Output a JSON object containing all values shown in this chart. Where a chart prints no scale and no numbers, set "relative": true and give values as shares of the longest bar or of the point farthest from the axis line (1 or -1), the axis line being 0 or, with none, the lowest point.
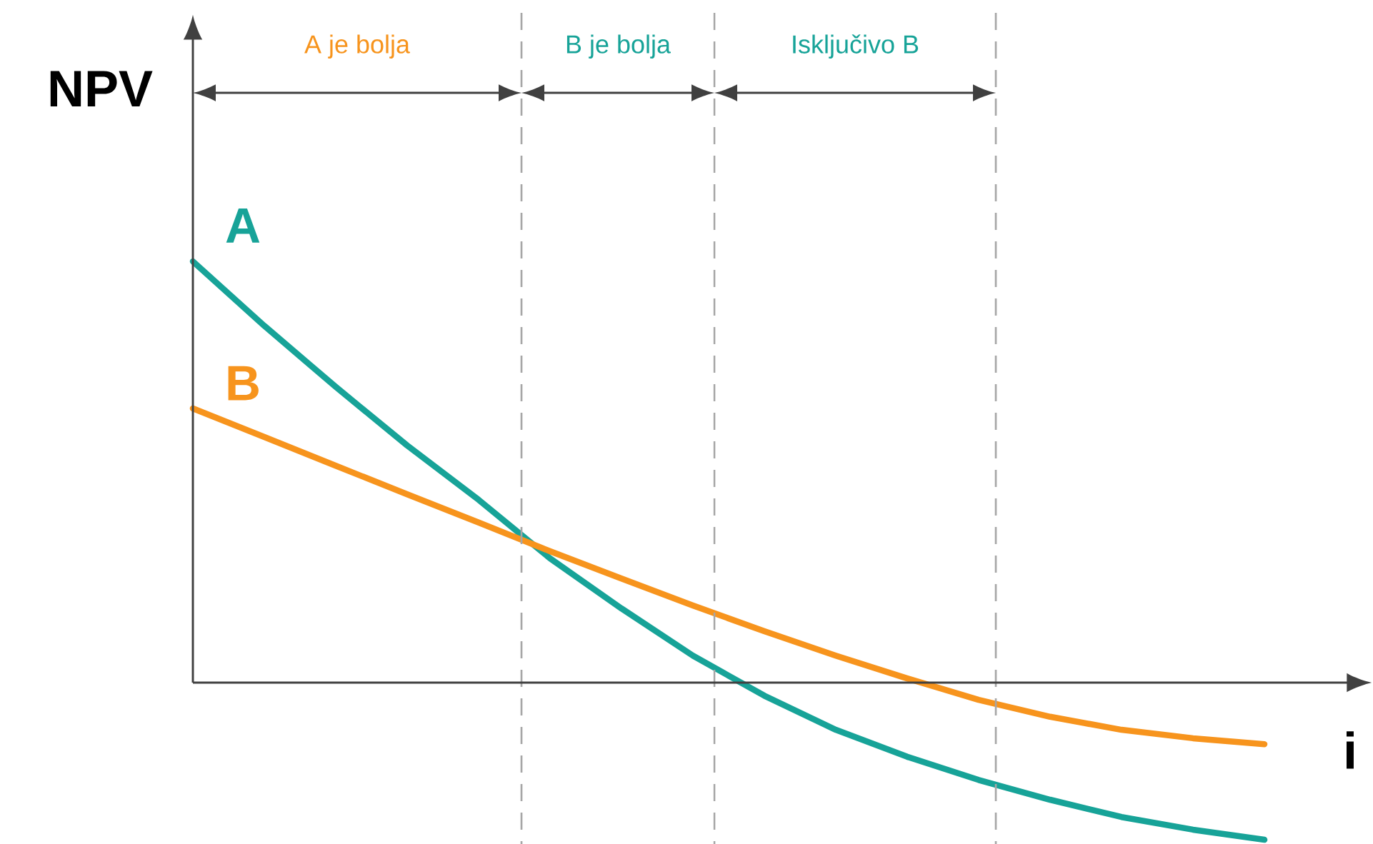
{
  "chart_data": {
    "type": "line",
    "relative": true,
    "xlabel": "i",
    "ylabel": "NPV",
    "categories": [
      null,
      null,
      null,
      null,
      null,
      null,
      null,
      null,
      null,
      null,
      null,
      null,
      null,
      null,
      null,
      null
    ],
    "series": [
      {
        "name": "A",
        "color": "#17a398",
        "values": [
          1,
          0.847,
          0.702,
          0.563,
          0.434,
          0.295,
          0.176,
          0.064,
          -0.031,
          -0.112,
          -0.176,
          -0.231,
          -0.278,
          -0.319,
          -0.349,
          -0.373
        ]
      },
      {
        "name": "B",
        "color": "#f7941d",
        "values": [
          0.651,
          0.583,
          0.515,
          0.447,
          0.38,
          0.312,
          0.247,
          0.183,
          0.122,
          0.064,
          0.01,
          -0.041,
          -0.081,
          -0.112,
          -0.132,
          -0.146
        ]
      }
    ],
    "annotations": [
      "A je bolja",
      "B je bolja",
      "Isključivo B"
    ]
  }
}
